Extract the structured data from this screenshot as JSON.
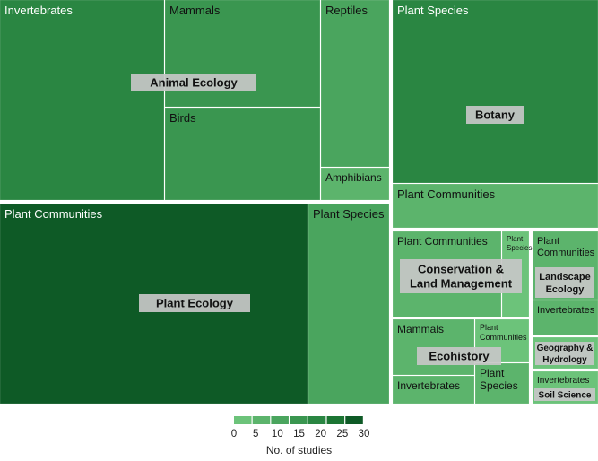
{
  "chart_data": {
    "type": "treemap",
    "groups": [
      {
        "name": "Animal Ecology",
        "children": [
          {
            "name": "Invertebrates",
            "value": 19
          },
          {
            "name": "Mammals",
            "value": 15
          },
          {
            "name": "Birds",
            "value": 15
          },
          {
            "name": "Reptiles",
            "value": 8
          },
          {
            "name": "Amphibians",
            "value": 3
          }
        ]
      },
      {
        "name": "Botany",
        "children": [
          {
            "name": "Plant Species",
            "value": 22
          },
          {
            "name": "Plant Communities",
            "value": 7
          }
        ]
      },
      {
        "name": "Plant Ecology",
        "children": [
          {
            "name": "Plant Communities",
            "value": 30
          },
          {
            "name": "Plant Species",
            "value": 10
          }
        ]
      },
      {
        "name": "Conservation &\nLand Management",
        "children": [
          {
            "name": "Plant Communities",
            "value": 6
          },
          {
            "name": "Plant\nSpecies",
            "value": 1
          }
        ]
      },
      {
        "name": "Ecohistory",
        "children": [
          {
            "name": "Mammals",
            "value": 5
          },
          {
            "name": "Invertebrates",
            "value": 4
          },
          {
            "name": "Plant\nCommunities",
            "value": 2
          },
          {
            "name": "Plant\nSpecies",
            "value": 3
          }
        ]
      },
      {
        "name": "Landscape\nEcology",
        "children": [
          {
            "name": "Plant\nCommunities",
            "value": 6
          },
          {
            "name": "Invertebrates",
            "value": 3
          }
        ]
      },
      {
        "name": "Geography &\nHydrology",
        "children": [
          {
            "name": "",
            "value": 2
          }
        ]
      },
      {
        "name": "Soil Science",
        "children": [
          {
            "name": "Invertebrates",
            "value": 2
          }
        ]
      }
    ],
    "legend": {
      "title": "No. of studies",
      "ticks": [
        "0",
        "5",
        "10",
        "15",
        "20",
        "25",
        "30"
      ],
      "range": [
        0,
        30
      ],
      "placement": "bottom-center"
    },
    "colors": {
      "scale": [
        "#6cc37a",
        "#5cb46c",
        "#4aa55e",
        "#3a9650",
        "#2a8642",
        "#1c7533",
        "#0e5a26"
      ],
      "gap": "#ffffff",
      "group_label_bg": "#c7c7c7",
      "group_label_text": "#111111",
      "cell_label_text": "#111111",
      "cell_label_text_dark": "#ffffff"
    }
  }
}
